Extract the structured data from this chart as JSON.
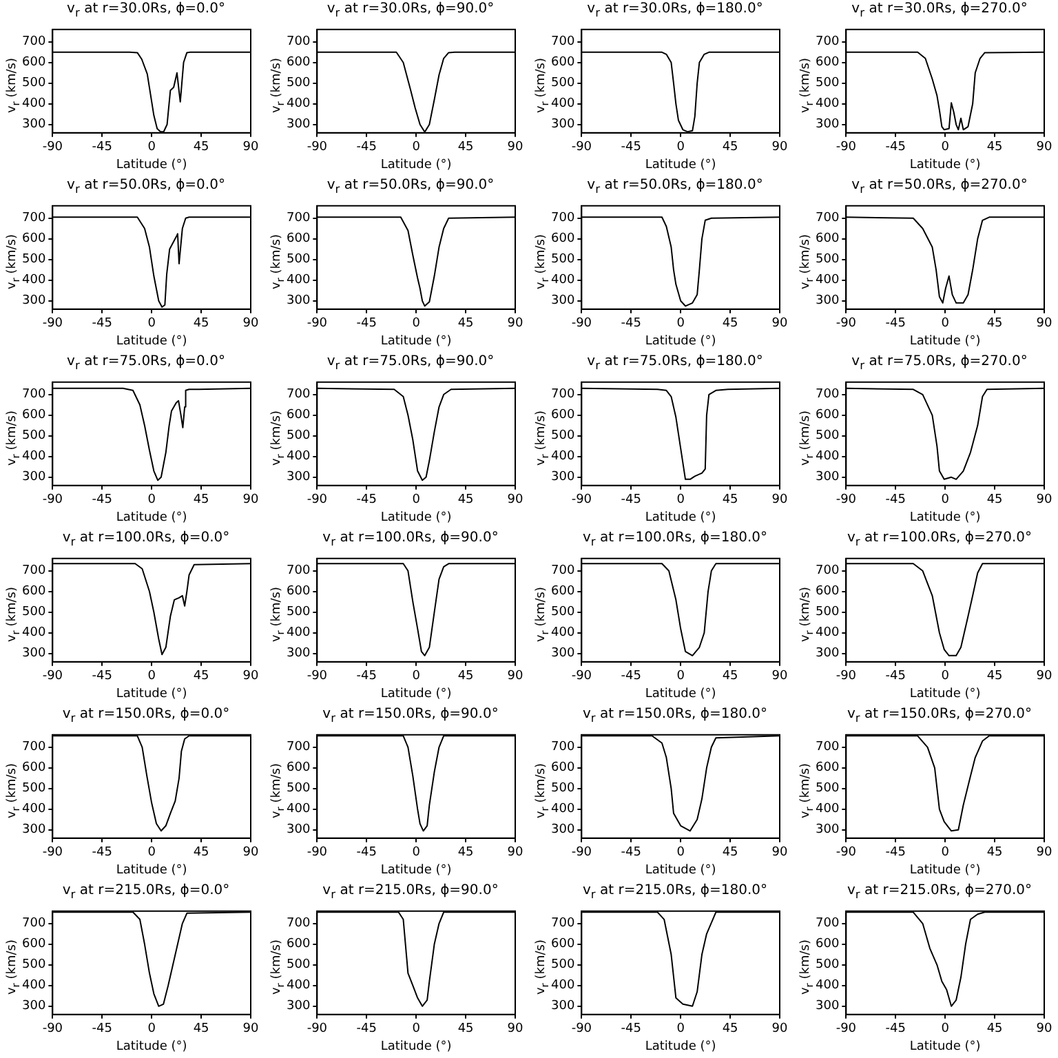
{
  "chart_data": [
    {
      "type": "line",
      "title": "v$_{r}$ at r=30.0Rs, ϕ=0.0°",
      "xlabel": "Latitude (°)",
      "ylabel": "v$_{r}$ (km/s)",
      "color": "#000000",
      "xlim": [
        -90,
        90
      ],
      "ylim": [
        260,
        760
      ],
      "xticks": [
        -90,
        -45,
        0,
        45,
        90
      ],
      "yticks": [
        300,
        400,
        500,
        600,
        700
      ],
      "x": [
        -90,
        -20,
        -13,
        -9,
        -4,
        -1,
        2,
        5,
        8,
        11,
        14,
        17,
        20,
        23,
        26,
        29,
        32,
        35,
        90
      ],
      "values": [
        650,
        650,
        648,
        616,
        545,
        445,
        344,
        280,
        265,
        266,
        300,
        465,
        480,
        550,
        410,
        600,
        648,
        650,
        650
      ]
    },
    {
      "type": "line",
      "title": "v$_{r}$ at r=30.0Rs, ϕ=90.0°",
      "xlabel": "Latitude (°)",
      "ylabel": "v$_{r}$ (km/s)",
      "color": "#000000",
      "xlim": [
        -90,
        90
      ],
      "ylim": [
        260,
        760
      ],
      "xticks": [
        -90,
        -45,
        0,
        45,
        90
      ],
      "yticks": [
        300,
        400,
        500,
        600,
        700
      ],
      "x": [
        -90,
        -18,
        -11.7,
        -5.2,
        -0.9,
        3.5,
        7.8,
        12,
        16.5,
        20.8,
        25,
        29.5,
        35,
        90
      ],
      "values": [
        650,
        650,
        600,
        470,
        380,
        300,
        264,
        300,
        420,
        540,
        620,
        648,
        650,
        650
      ]
    },
    {
      "type": "line",
      "title": "v$_{r}$ at r=30.0Rs, ϕ=180.0°",
      "xlabel": "Latitude (°)",
      "ylabel": "v$_{r}$ (km/s)",
      "color": "#000000",
      "xlim": [
        -90,
        90
      ],
      "ylim": [
        260,
        760
      ],
      "xticks": [
        -90,
        -45,
        0,
        45,
        90
      ],
      "yticks": [
        300,
        400,
        500,
        600,
        700
      ],
      "x": [
        -90,
        -17,
        -13,
        -8.6,
        -6.4,
        -4.3,
        -2,
        2,
        6.4,
        10.7,
        12.9,
        15,
        17,
        21.4,
        25.7,
        90
      ],
      "values": [
        650,
        650,
        640,
        600,
        500,
        400,
        320,
        275,
        265,
        270,
        340,
        500,
        600,
        640,
        650,
        650
      ]
    },
    {
      "type": "line",
      "title": "v$_{r}$ at r=30.0Rs, ϕ=270.0°",
      "xlabel": "Latitude (°)",
      "ylabel": "v$_{r}$ (km/s)",
      "color": "#000000",
      "xlim": [
        -90,
        90
      ],
      "ylim": [
        260,
        760
      ],
      "xticks": [
        -90,
        -45,
        0,
        45,
        90
      ],
      "yticks": [
        300,
        400,
        500,
        600,
        700
      ],
      "x": [
        -90,
        -25,
        -18,
        -11.7,
        -7.4,
        -5.2,
        -3,
        -0.9,
        3.5,
        5.6,
        7.8,
        10,
        12,
        14.3,
        16.5,
        20.8,
        25,
        27.3,
        31.7,
        36,
        90
      ],
      "values": [
        650,
        650,
        620,
        520,
        440,
        370,
        290,
        275,
        280,
        405,
        360,
        300,
        275,
        330,
        275,
        290,
        400,
        550,
        620,
        648,
        650
      ]
    },
    {
      "type": "line",
      "title": "v$_{r}$ at r=50.0Rs, ϕ=0.0°",
      "xlabel": "Latitude (°)",
      "ylabel": "v$_{r}$ (km/s)",
      "color": "#000000",
      "xlim": [
        -90,
        90
      ],
      "ylim": [
        260,
        760
      ],
      "xticks": [
        -90,
        -45,
        0,
        45,
        90
      ],
      "yticks": [
        300,
        400,
        500,
        600,
        700
      ],
      "x": [
        -90,
        -13,
        -6.4,
        -2,
        2,
        6.4,
        9.4,
        12,
        13.7,
        16.3,
        19.3,
        22.3,
        23.6,
        24.9,
        27.9,
        30.9,
        34,
        90
      ],
      "values": [
        705,
        705,
        650,
        560,
        420,
        300,
        270,
        280,
        430,
        550,
        580,
        610,
        625,
        480,
        650,
        700,
        705,
        705
      ]
    },
    {
      "type": "line",
      "title": "v$_{r}$ at r=50.0Rs, ϕ=90.0°",
      "xlabel": "Latitude (°)",
      "ylabel": "v$_{r}$ (km/s)",
      "color": "#000000",
      "xlim": [
        -90,
        90
      ],
      "ylim": [
        260,
        760
      ],
      "xticks": [
        -90,
        -45,
        0,
        45,
        90
      ],
      "yticks": [
        300,
        400,
        500,
        600,
        700
      ],
      "x": [
        -90,
        -14,
        -7.4,
        -3,
        1.3,
        3.5,
        5.6,
        7.8,
        12,
        16.5,
        20.8,
        25,
        29.5,
        90
      ],
      "values": [
        705,
        705,
        640,
        520,
        410,
        360,
        300,
        275,
        295,
        420,
        560,
        650,
        700,
        705
      ]
    },
    {
      "type": "line",
      "title": "v$_{r}$ at r=50.0Rs, ϕ=180.0°",
      "xlabel": "Latitude (°)",
      "ylabel": "v$_{r}$ (km/s)",
      "color": "#000000",
      "xlim": [
        -90,
        90
      ],
      "ylim": [
        260,
        760
      ],
      "xticks": [
        -90,
        -45,
        0,
        45,
        90
      ],
      "yticks": [
        300,
        400,
        500,
        600,
        700
      ],
      "x": [
        -90,
        -17,
        -13,
        -8.6,
        -6.4,
        -4.3,
        0,
        4.3,
        10.7,
        15,
        17,
        19.3,
        22.3,
        27.9,
        90
      ],
      "values": [
        705,
        705,
        660,
        560,
        450,
        380,
        300,
        275,
        290,
        330,
        450,
        600,
        690,
        700,
        705
      ]
    },
    {
      "type": "line",
      "title": "v$_{r}$ at r=50.0Rs, ϕ=270.0°",
      "xlabel": "Latitude (°)",
      "ylabel": "v$_{r}$ (km/s)",
      "color": "#000000",
      "xlim": [
        -90,
        90
      ],
      "ylim": [
        260,
        760
      ],
      "xticks": [
        -90,
        -45,
        0,
        45,
        90
      ],
      "yticks": [
        300,
        400,
        500,
        600,
        700
      ],
      "x": [
        -90,
        -29,
        -20.4,
        -11.7,
        -8.2,
        -5.2,
        -2.2,
        0.4,
        3.5,
        6.5,
        10,
        16.5,
        20.8,
        25,
        29.5,
        33.9,
        40,
        90
      ],
      "values": [
        705,
        700,
        650,
        560,
        450,
        320,
        290,
        360,
        420,
        330,
        290,
        290,
        330,
        450,
        600,
        690,
        705,
        705
      ]
    },
    {
      "type": "line",
      "title": "v$_{r}$ at r=75.0Rs, ϕ=0.0°",
      "xlabel": "Latitude (°)",
      "ylabel": "v$_{r}$ (km/s)",
      "color": "#000000",
      "xlim": [
        -90,
        90
      ],
      "ylim": [
        260,
        760
      ],
      "xticks": [
        -90,
        -45,
        0,
        45,
        90
      ],
      "yticks": [
        300,
        400,
        500,
        600,
        700
      ],
      "x": [
        -90,
        -26,
        -17,
        -10.7,
        -6.4,
        -2,
        2,
        5.6,
        8.6,
        12.9,
        15.9,
        18,
        22.3,
        24.4,
        26.6,
        28.3,
        30,
        30.9,
        34,
        43,
        90
      ],
      "values": [
        730,
        730,
        720,
        650,
        550,
        430,
        330,
        285,
        300,
        420,
        550,
        620,
        660,
        670,
        600,
        540,
        640,
        720,
        725,
        725,
        730
      ]
    },
    {
      "type": "line",
      "title": "v$_{r}$ at r=75.0Rs, ϕ=90.0°",
      "xlabel": "Latitude (°)",
      "ylabel": "v$_{r}$ (km/s)",
      "color": "#000000",
      "xlim": [
        -90,
        90
      ],
      "ylim": [
        260,
        760
      ],
      "xticks": [
        -90,
        -45,
        0,
        45,
        90
      ],
      "yticks": [
        300,
        400,
        500,
        600,
        700
      ],
      "x": [
        -90,
        -20,
        -11.7,
        -7.4,
        -3,
        1.3,
        5.6,
        9,
        12,
        16.5,
        20.8,
        25,
        31.7,
        90
      ],
      "values": [
        730,
        725,
        690,
        600,
        480,
        330,
        285,
        300,
        380,
        520,
        640,
        700,
        725,
        730
      ]
    },
    {
      "type": "line",
      "title": "v$_{r}$ at r=75.0Rs, ϕ=180.0°",
      "xlabel": "Latitude (°)",
      "ylabel": "v$_{r}$ (km/s)",
      "color": "#000000",
      "xlim": [
        -90,
        90
      ],
      "ylim": [
        260,
        760
      ],
      "xticks": [
        -90,
        -45,
        0,
        45,
        90
      ],
      "yticks": [
        300,
        400,
        500,
        600,
        700
      ],
      "x": [
        -90,
        -21,
        -13,
        -8.6,
        -4.3,
        0,
        4.3,
        8.6,
        12.9,
        19.3,
        22.3,
        23.6,
        25.7,
        32,
        43,
        90
      ],
      "values": [
        730,
        725,
        720,
        690,
        590,
        440,
        290,
        290,
        305,
        320,
        340,
        600,
        700,
        720,
        725,
        730
      ]
    },
    {
      "type": "line",
      "title": "v$_{r}$ at r=75.0Rs, ϕ=270.0°",
      "xlabel": "Latitude (°)",
      "ylabel": "v$_{r}$ (km/s)",
      "color": "#000000",
      "xlim": [
        -90,
        90
      ],
      "ylim": [
        260,
        760
      ],
      "xticks": [
        -90,
        -45,
        0,
        45,
        90
      ],
      "yticks": [
        300,
        400,
        500,
        600,
        700
      ],
      "x": [
        -90,
        -29,
        -20.4,
        -11.7,
        -7.4,
        -5.2,
        -0.9,
        5.6,
        10,
        16.5,
        23,
        29.5,
        33.9,
        38,
        90
      ],
      "values": [
        730,
        725,
        700,
        600,
        450,
        330,
        290,
        300,
        290,
        330,
        420,
        550,
        690,
        725,
        730
      ]
    },
    {
      "type": "line",
      "title": "v$_{r}$ at r=100.0Rs, ϕ=0.0°",
      "xlabel": "Latitude (°)",
      "ylabel": "v$_{r}$ (km/s)",
      "color": "#000000",
      "xlim": [
        -90,
        90
      ],
      "ylim": [
        260,
        760
      ],
      "xticks": [
        -90,
        -45,
        0,
        45,
        90
      ],
      "yticks": [
        300,
        400,
        500,
        600,
        700
      ],
      "x": [
        -90,
        -15,
        -8.6,
        -2,
        2,
        6.4,
        9.4,
        12.9,
        17,
        20.6,
        24.9,
        27.9,
        30,
        32,
        34,
        38.6,
        90
      ],
      "values": [
        735,
        735,
        710,
        600,
        500,
        370,
        295,
        330,
        480,
        560,
        570,
        580,
        530,
        600,
        680,
        730,
        735
      ]
    },
    {
      "type": "line",
      "title": "v$_{r}$ at r=100.0Rs, ϕ=90.0°",
      "xlabel": "Latitude (°)",
      "ylabel": "v$_{r}$ (km/s)",
      "color": "#000000",
      "xlim": [
        -90,
        90
      ],
      "ylim": [
        260,
        760
      ],
      "xticks": [
        -90,
        -45,
        0,
        45,
        90
      ],
      "yticks": [
        300,
        400,
        500,
        600,
        700
      ],
      "x": [
        -90,
        -11.7,
        -7.4,
        -3,
        1.3,
        4.8,
        7.8,
        12,
        16.5,
        20.8,
        25,
        29.5,
        90
      ],
      "values": [
        735,
        735,
        700,
        550,
        420,
        310,
        290,
        330,
        500,
        660,
        720,
        735,
        735
      ]
    },
    {
      "type": "line",
      "title": "v$_{r}$ at r=100.0Rs, ϕ=180.0°",
      "xlabel": "Latitude (°)",
      "ylabel": "v$_{r}$ (km/s)",
      "color": "#000000",
      "xlim": [
        -90,
        90
      ],
      "ylim": [
        260,
        760
      ],
      "xticks": [
        -90,
        -45,
        0,
        45,
        90
      ],
      "yticks": [
        300,
        400,
        500,
        600,
        700
      ],
      "x": [
        -90,
        -17,
        -10.7,
        -4.3,
        0,
        4.3,
        10.7,
        17,
        21.4,
        24.9,
        27.9,
        32,
        90
      ],
      "values": [
        735,
        735,
        700,
        560,
        420,
        310,
        290,
        330,
        400,
        600,
        700,
        735,
        735
      ]
    },
    {
      "type": "line",
      "title": "v$_{r}$ at r=100.0Rs, ϕ=270.0°",
      "xlabel": "Latitude (°)",
      "ylabel": "v$_{r}$ (km/s)",
      "color": "#000000",
      "xlim": [
        -90,
        90
      ],
      "ylim": [
        260,
        760
      ],
      "xticks": [
        -90,
        -45,
        0,
        45,
        90
      ],
      "yticks": [
        300,
        400,
        500,
        600,
        700
      ],
      "x": [
        -90,
        -29,
        -20.4,
        -11.7,
        -5.2,
        -0.9,
        3.5,
        10,
        14.3,
        20.8,
        25,
        29.5,
        33.9,
        90
      ],
      "values": [
        735,
        735,
        700,
        580,
        400,
        320,
        290,
        290,
        330,
        480,
        580,
        690,
        735,
        735
      ]
    },
    {
      "type": "line",
      "title": "v$_{r}$ at r=150.0Rs, ϕ=0.0°",
      "xlabel": "Latitude (°)",
      "ylabel": "v$_{r}$ (km/s)",
      "color": "#000000",
      "xlim": [
        -90,
        90
      ],
      "ylim": [
        260,
        760
      ],
      "xticks": [
        -90,
        -45,
        0,
        45,
        90
      ],
      "yticks": [
        300,
        400,
        500,
        600,
        700
      ],
      "x": [
        -90,
        -13,
        -8.6,
        -4.3,
        0,
        4.3,
        8.6,
        12.9,
        17,
        21.4,
        24.9,
        27,
        30,
        34,
        90
      ],
      "values": [
        755,
        755,
        700,
        560,
        430,
        330,
        295,
        320,
        380,
        440,
        550,
        680,
        740,
        755,
        755
      ]
    },
    {
      "type": "line",
      "title": "v$_{r}$ at r=150.0Rs, ϕ=90.0°",
      "xlabel": "Latitude (°)",
      "ylabel": "v$_{r}$ (km/s)",
      "color": "#000000",
      "xlim": [
        -90,
        90
      ],
      "ylim": [
        260,
        760
      ],
      "xticks": [
        -90,
        -45,
        0,
        45,
        90
      ],
      "yticks": [
        300,
        400,
        500,
        600,
        700
      ],
      "x": [
        -90,
        -11.7,
        -7.4,
        -3,
        1.3,
        3.5,
        6.5,
        10,
        12,
        16.5,
        20.8,
        25,
        90
      ],
      "values": [
        755,
        755,
        700,
        560,
        400,
        330,
        295,
        320,
        420,
        580,
        700,
        755,
        755
      ]
    },
    {
      "type": "line",
      "title": "v$_{r}$ at r=150.0Rs, ϕ=180.0°",
      "xlabel": "Latitude (°)",
      "ylabel": "v$_{r}$ (km/s)",
      "color": "#000000",
      "xlim": [
        -90,
        90
      ],
      "ylim": [
        260,
        760
      ],
      "xticks": [
        -90,
        -45,
        0,
        45,
        90
      ],
      "yticks": [
        300,
        400,
        500,
        600,
        700
      ],
      "x": [
        -90,
        -26,
        -17,
        -13,
        -8.6,
        -6.4,
        0,
        8.6,
        15,
        19.3,
        23.6,
        27.9,
        32,
        90
      ],
      "values": [
        755,
        755,
        720,
        650,
        500,
        380,
        320,
        295,
        350,
        450,
        600,
        700,
        745,
        755
      ]
    },
    {
      "type": "line",
      "title": "v$_{r}$ at r=150.0Rs, ϕ=270.0°",
      "xlabel": "Latitude (°)",
      "ylabel": "v$_{r}$ (km/s)",
      "color": "#000000",
      "xlim": [
        -90,
        90
      ],
      "ylim": [
        260,
        760
      ],
      "xticks": [
        -90,
        -45,
        0,
        45,
        90
      ],
      "yticks": [
        300,
        400,
        500,
        600,
        700
      ],
      "x": [
        -90,
        -25,
        -16,
        -9.5,
        -5.2,
        -0.9,
        5.6,
        12,
        16.5,
        23,
        27.3,
        33.9,
        40,
        90
      ],
      "values": [
        755,
        755,
        700,
        600,
        400,
        340,
        295,
        300,
        420,
        560,
        650,
        730,
        755,
        755
      ]
    },
    {
      "type": "line",
      "title": "v$_{r}$ at r=215.0Rs, ϕ=0.0°",
      "xlabel": "Latitude (°)",
      "ylabel": "v$_{r}$ (km/s)",
      "color": "#000000",
      "xlim": [
        -90,
        90
      ],
      "ylim": [
        260,
        760
      ],
      "xticks": [
        -90,
        -45,
        0,
        45,
        90
      ],
      "yticks": [
        300,
        400,
        500,
        600,
        700
      ],
      "x": [
        -90,
        -17,
        -10.7,
        -6.4,
        -2,
        2,
        6.4,
        10.7,
        15,
        19.3,
        23.6,
        27.9,
        32,
        90
      ],
      "values": [
        755,
        755,
        720,
        600,
        460,
        360,
        300,
        310,
        400,
        500,
        600,
        700,
        750,
        755
      ]
    },
    {
      "type": "line",
      "title": "v$_{r}$ at r=215.0Rs, ϕ=90.0°",
      "xlabel": "Latitude (°)",
      "ylabel": "v$_{r}$ (km/s)",
      "color": "#000000",
      "xlim": [
        -90,
        90
      ],
      "ylim": [
        260,
        760
      ],
      "xticks": [
        -90,
        -45,
        0,
        45,
        90
      ],
      "yticks": [
        300,
        400,
        500,
        600,
        700
      ],
      "x": [
        -90,
        -16,
        -11.7,
        -7.4,
        -3,
        1.3,
        5.6,
        10,
        12,
        16.5,
        20.8,
        25,
        90
      ],
      "values": [
        755,
        755,
        720,
        460,
        400,
        340,
        300,
        330,
        420,
        600,
        700,
        755,
        755
      ]
    },
    {
      "type": "line",
      "title": "v$_{r}$ at r=215.0Rs, ϕ=180.0°",
      "xlabel": "Latitude (°)",
      "ylabel": "v$_{r}$ (km/s)",
      "color": "#000000",
      "xlim": [
        -90,
        90
      ],
      "ylim": [
        260,
        760
      ],
      "xticks": [
        -90,
        -45,
        0,
        45,
        90
      ],
      "yticks": [
        300,
        400,
        500,
        600,
        700
      ],
      "x": [
        -90,
        -21,
        -15,
        -8.6,
        -4.3,
        2,
        10.7,
        15,
        19.3,
        23.6,
        32,
        90
      ],
      "values": [
        755,
        755,
        720,
        550,
        340,
        310,
        300,
        370,
        550,
        650,
        755,
        755
      ]
    },
    {
      "type": "line",
      "title": "v$_{r}$ at r=215.0Rs, ϕ=270.0°",
      "xlabel": "Latitude (°)",
      "ylabel": "v$_{r}$ (km/s)",
      "color": "#000000",
      "xlim": [
        -90,
        90
      ],
      "ylim": [
        260,
        760
      ],
      "xticks": [
        -90,
        -45,
        0,
        45,
        90
      ],
      "yticks": [
        300,
        400,
        500,
        600,
        700
      ],
      "x": [
        -90,
        -29,
        -20.4,
        -13.9,
        -7.4,
        -3,
        1.3,
        5.6,
        10,
        14.3,
        18.6,
        23,
        29.5,
        36,
        90
      ],
      "values": [
        755,
        755,
        700,
        580,
        500,
        420,
        380,
        300,
        330,
        440,
        600,
        720,
        745,
        755,
        755
      ]
    }
  ]
}
